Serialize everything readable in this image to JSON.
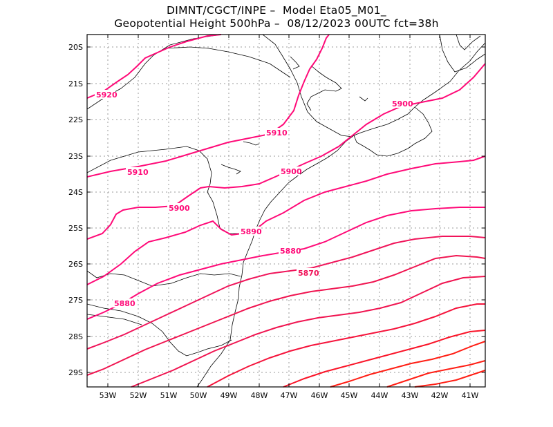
{
  "title_line1": "DIMNT/CGCT/INPE –  Model Eta05_M01_",
  "title_line2": "Geopotential Height 500hPa –  08/12/2023 00UTC fct=38h",
  "y_ticks": [
    "20S",
    "21S",
    "22S",
    "23S",
    "24S",
    "25S",
    "26S",
    "27S",
    "28S",
    "29S"
  ],
  "x_ticks": [
    "53W",
    "52W",
    "51W",
    "50W",
    "49W",
    "48W",
    "47W",
    "46W",
    "45W",
    "44W",
    "43W",
    "42W",
    "41W"
  ],
  "contour_labels": [
    {
      "text": "5920"
    },
    {
      "text": "5910"
    },
    {
      "text": "5910"
    },
    {
      "text": "5900"
    },
    {
      "text": "5900"
    },
    {
      "text": "5900"
    },
    {
      "text": "5890"
    },
    {
      "text": "5880"
    },
    {
      "text": "5880"
    },
    {
      "text": "5870"
    }
  ],
  "colors": {
    "magenta": "#ff0a78",
    "mid": "#f01450",
    "red": "#ff1e14",
    "grid": "#999999",
    "coast": "#000000"
  }
}
